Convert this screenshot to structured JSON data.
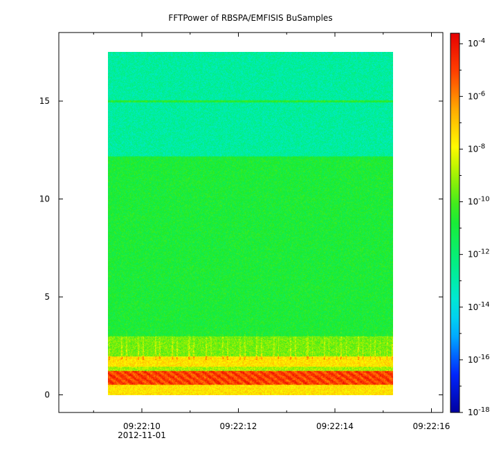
{
  "chart_data": {
    "type": "heatmap",
    "title": "FFTPower of RBSPA/EMFISIS  BuSamples",
    "xlabel": "",
    "ylabel": "",
    "x_range_seconds": [
      "09:22:08.4",
      "09:22:16.2"
    ],
    "data_time_range": [
      "09:22:09.3",
      "09:22:15.2"
    ],
    "x_ticks": [
      {
        "label": "09:22:10",
        "sublabel": "2012-11-01",
        "t": 10
      },
      {
        "label": "09:22:12",
        "sublabel": "",
        "t": 12
      },
      {
        "label": "09:22:14",
        "sublabel": "",
        "t": 14
      },
      {
        "label": "09:22:16",
        "sublabel": "",
        "t": 16
      }
    ],
    "x_minor_ticks": [
      9,
      11,
      13,
      15
    ],
    "ylim": [
      -0.9,
      18.5
    ],
    "y_ticks": [
      {
        "label": "0",
        "value": 0
      },
      {
        "label": "5",
        "value": 5
      },
      {
        "label": "10",
        "value": 10
      },
      {
        "label": "15",
        "value": 15
      }
    ],
    "colorbar": {
      "scale": "log",
      "range_exponent": [
        -18,
        -3.6
      ],
      "colormap": "rainbow",
      "ticks": [
        {
          "base": "10",
          "exp": "-4",
          "value": -4
        },
        {
          "base": "10",
          "exp": "-6",
          "value": -6
        },
        {
          "base": "10",
          "exp": "-8",
          "value": -8
        },
        {
          "base": "10",
          "exp": "-10",
          "value": -10
        },
        {
          "base": "10",
          "exp": "-12",
          "value": -12
        },
        {
          "base": "10",
          "exp": "-14",
          "value": -14
        },
        {
          "base": "10",
          "exp": "-16",
          "value": -16
        },
        {
          "base": "10",
          "exp": "-18",
          "value": -18
        }
      ]
    },
    "frequency_bands": [
      {
        "y_from": 12.2,
        "y_to": 17.5,
        "log_power": -12.8
      },
      {
        "y_from": 14.95,
        "y_to": 15.05,
        "log_power": -10.6
      },
      {
        "y_from": 3.0,
        "y_to": 12.2,
        "log_power": -10.8
      },
      {
        "y_from": 2.0,
        "y_to": 3.0,
        "log_power": -9.5
      },
      {
        "y_from": 1.45,
        "y_to": 2.0,
        "log_power": -7.5
      },
      {
        "y_from": 1.25,
        "y_to": 1.45,
        "log_power": -9.0
      },
      {
        "y_from": 0.55,
        "y_to": 1.25,
        "log_power": -5.0
      },
      {
        "y_from": 0.0,
        "y_to": 0.55,
        "log_power": -7.5
      }
    ]
  }
}
